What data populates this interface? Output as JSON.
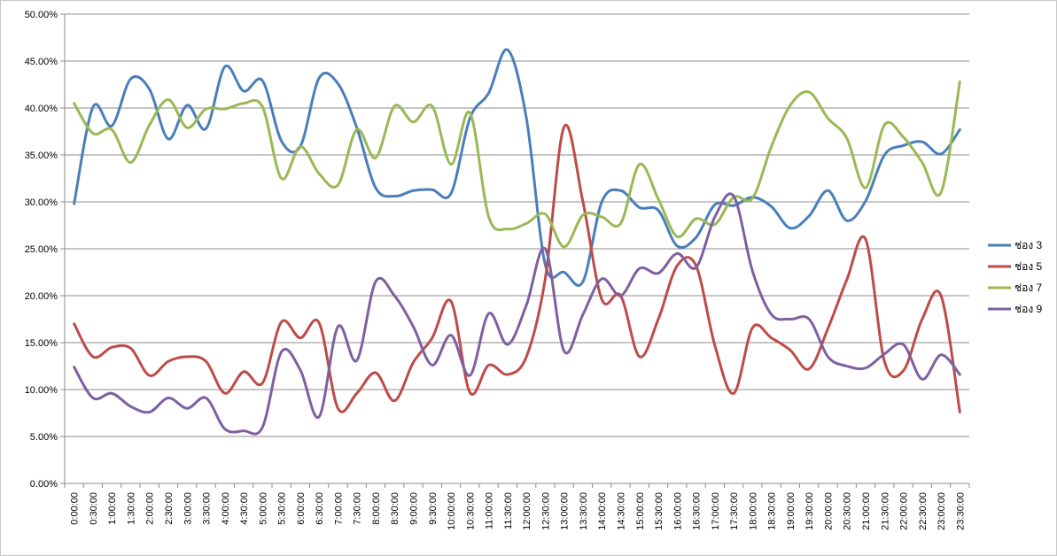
{
  "chart_data": {
    "type": "line",
    "title": "",
    "xlabel": "",
    "ylabel": "",
    "ylim": [
      0,
      50
    ],
    "yticks": [
      "0.00%",
      "5.00%",
      "10.00%",
      "15.00%",
      "20.00%",
      "25.00%",
      "30.00%",
      "35.00%",
      "40.00%",
      "45.00%",
      "50.00%"
    ],
    "grid": true,
    "legend": "right",
    "categories": [
      "0:00:00",
      "0:30:00",
      "1:00:00",
      "1:30:00",
      "2:00:00",
      "2:30:00",
      "3:00:00",
      "3:30:00",
      "4:00:00",
      "4:30:00",
      "5:00:00",
      "5:30:00",
      "6:00:00",
      "6:30:00",
      "7:00:00",
      "7:30:00",
      "8:00:00",
      "8:30:00",
      "9:00:00",
      "9:30:00",
      "10:00:00",
      "10:30:00",
      "11:00:00",
      "11:30:00",
      "12:00:00",
      "12:30:00",
      "13:00:00",
      "13:30:00",
      "14:00:00",
      "14:30:00",
      "15:00:00",
      "15:30:00",
      "16:00:00",
      "16:30:00",
      "17:00:00",
      "17:30:00",
      "18:00:00",
      "18:30:00",
      "19:00:00",
      "19:30:00",
      "20:00:00",
      "20:30:00",
      "21:00:00",
      "21:30:00",
      "22:00:00",
      "22:30:00",
      "23:00:00",
      "23:30:00"
    ],
    "series": [
      {
        "name": "ช่อง 3",
        "color": "#4a7ebb",
        "values": [
          29.8,
          40.1,
          38.1,
          43.1,
          42.0,
          36.7,
          40.3,
          37.8,
          44.4,
          41.8,
          42.9,
          36.5,
          35.9,
          43.2,
          42.6,
          37.9,
          31.5,
          30.6,
          31.2,
          31.3,
          30.9,
          38.9,
          41.6,
          46.2,
          38.9,
          23.3,
          22.5,
          21.5,
          30.0,
          31.2,
          29.4,
          29.1,
          25.3,
          26.2,
          29.7,
          29.6,
          30.5,
          29.5,
          27.2,
          28.5,
          31.2,
          28.0,
          30.1,
          35.0,
          36.0,
          36.4,
          35.1,
          37.7
        ]
      },
      {
        "name": "ช่อง 5",
        "color": "#be4b48",
        "values": [
          17.0,
          13.5,
          14.5,
          14.4,
          11.5,
          13.0,
          13.5,
          13.0,
          9.6,
          11.9,
          10.7,
          17.2,
          15.5,
          17.1,
          8.0,
          9.6,
          11.8,
          8.8,
          12.9,
          15.5,
          19.4,
          9.7,
          12.6,
          11.6,
          13.5,
          21.8,
          38.0,
          30.0,
          19.6,
          20.0,
          13.5,
          17.5,
          23.2,
          23.2,
          14.7,
          9.6,
          16.6,
          15.5,
          14.2,
          12.2,
          16.5,
          21.7,
          26.0,
          13.0,
          12.0,
          17.5,
          20.0,
          7.6
        ]
      },
      {
        "name": "ช่อง 7",
        "color": "#98b954",
        "values": [
          40.5,
          37.3,
          37.7,
          34.2,
          38.2,
          40.9,
          37.9,
          39.9,
          39.9,
          40.5,
          40.1,
          32.5,
          35.9,
          33.0,
          31.8,
          37.7,
          34.7,
          40.2,
          38.5,
          40.2,
          34.0,
          39.5,
          28.4,
          27.1,
          27.7,
          28.7,
          25.2,
          28.6,
          28.4,
          27.7,
          34.0,
          30.3,
          26.3,
          28.2,
          27.6,
          30.5,
          30.4,
          35.9,
          40.3,
          41.7,
          38.9,
          36.8,
          31.5,
          38.2,
          36.9,
          34.2,
          31.0,
          42.8
        ]
      },
      {
        "name": "ช่อง 9",
        "color": "#7d60a0",
        "values": [
          12.4,
          9.1,
          9.6,
          8.2,
          7.6,
          9.1,
          8.0,
          9.1,
          5.8,
          5.6,
          6.0,
          14.0,
          12.1,
          7.1,
          16.7,
          13.1,
          21.5,
          20.0,
          16.7,
          12.6,
          15.8,
          11.5,
          18.1,
          14.8,
          19.0,
          25.0,
          14.1,
          18.0,
          21.8,
          20.0,
          22.9,
          22.4,
          24.5,
          23.0,
          28.4,
          30.6,
          22.6,
          18.0,
          17.5,
          17.5,
          13.5,
          12.5,
          12.3,
          13.8,
          14.8,
          11.1,
          13.7,
          11.6
        ]
      }
    ]
  }
}
